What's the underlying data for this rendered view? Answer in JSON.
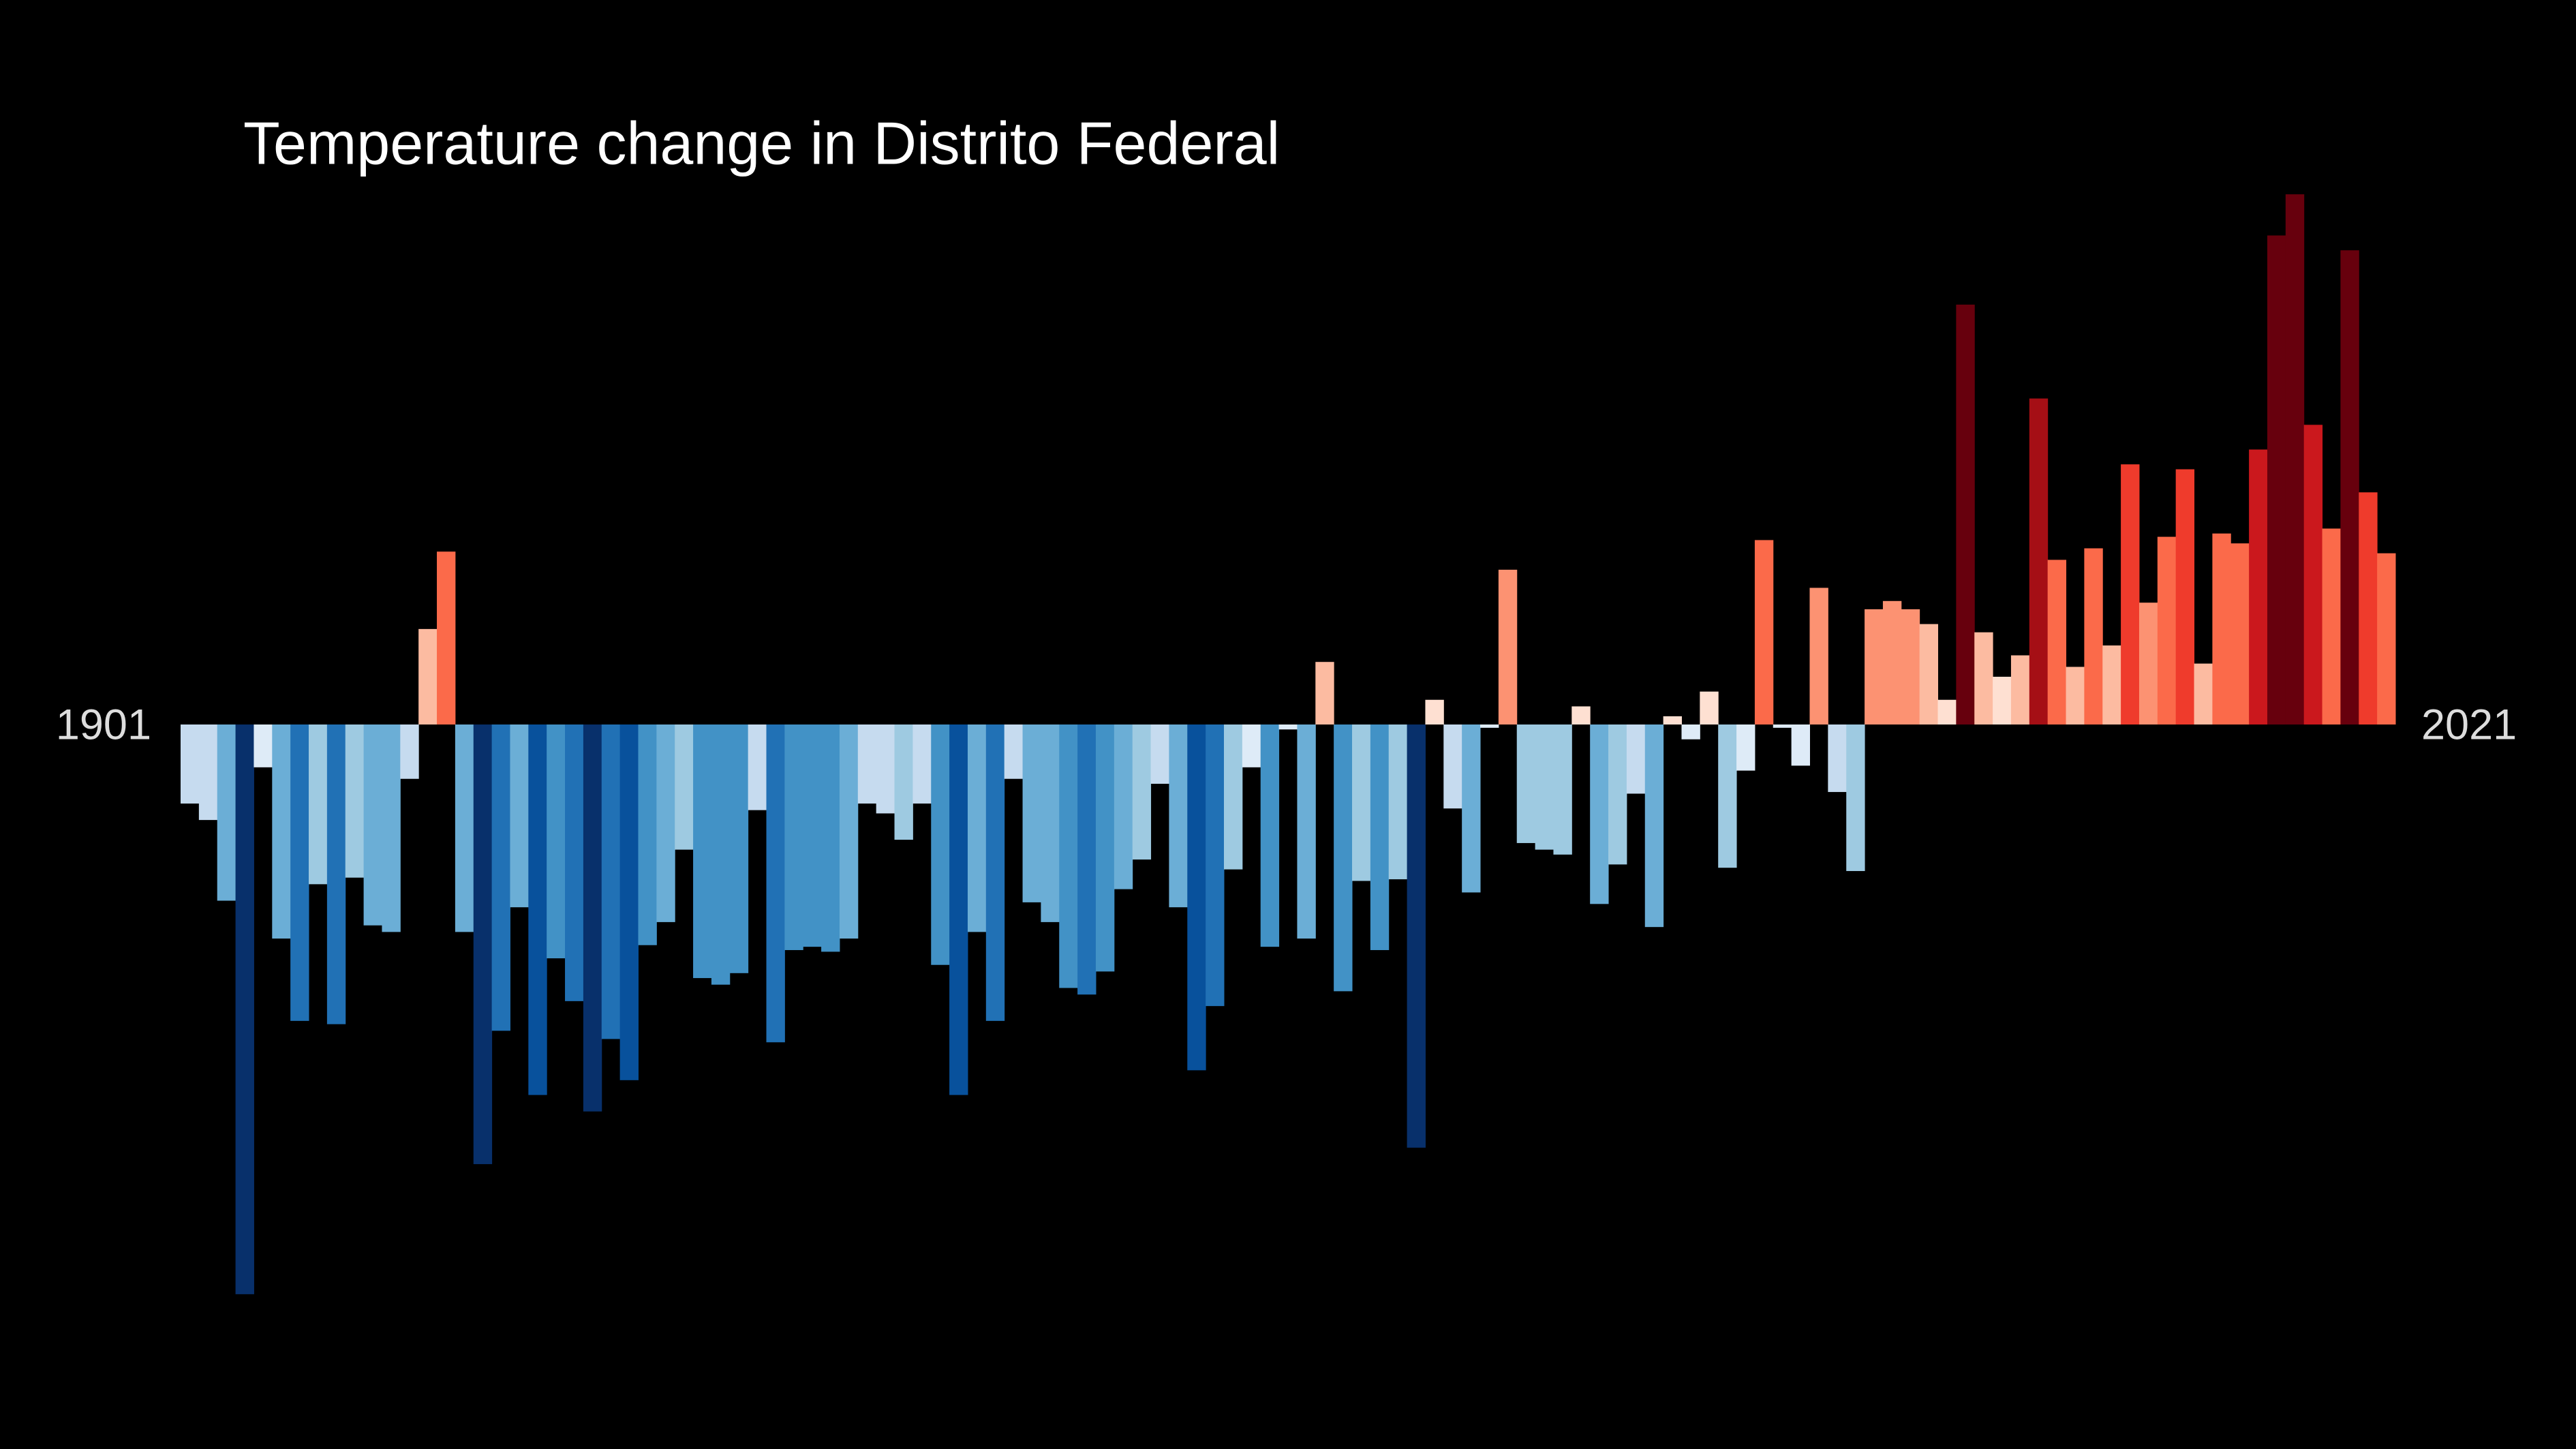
{
  "chart_data": {
    "type": "bar",
    "title": "Temperature change in Distrito Federal",
    "x": [
      1901,
      1902,
      1903,
      1904,
      1905,
      1906,
      1907,
      1908,
      1909,
      1910,
      1911,
      1912,
      1913,
      1914,
      1915,
      1916,
      1917,
      1918,
      1919,
      1920,
      1921,
      1922,
      1923,
      1924,
      1925,
      1926,
      1927,
      1928,
      1929,
      1930,
      1931,
      1932,
      1933,
      1934,
      1935,
      1936,
      1937,
      1938,
      1939,
      1940,
      1941,
      1942,
      1943,
      1944,
      1945,
      1946,
      1947,
      1948,
      1949,
      1950,
      1951,
      1952,
      1953,
      1954,
      1955,
      1956,
      1957,
      1958,
      1959,
      1960,
      1961,
      1962,
      1963,
      1964,
      1965,
      1966,
      1967,
      1968,
      1969,
      1970,
      1971,
      1972,
      1973,
      1974,
      1975,
      1976,
      1977,
      1978,
      1979,
      1980,
      1981,
      1982,
      1983,
      1984,
      1985,
      1986,
      1987,
      1988,
      1989,
      1990,
      1991,
      1992,
      1993,
      1994,
      1995,
      1996,
      1997,
      1998,
      1999,
      2000,
      2001,
      2002,
      2003,
      2004,
      2005,
      2006,
      2007,
      2008,
      2009,
      2010,
      2011,
      2012,
      2013,
      2014,
      2015,
      2016,
      2017,
      2018,
      2019,
      2020,
      2021
    ],
    "values": [
      -0.24,
      -0.29,
      -0.535,
      -1.73,
      -0.13,
      -0.65,
      -0.9,
      -0.485,
      -0.91,
      -0.465,
      -0.61,
      -0.63,
      -0.165,
      0.29,
      0.525,
      -0.63,
      -1.335,
      -0.93,
      -0.555,
      -1.125,
      -0.71,
      -0.84,
      -1.175,
      -0.955,
      -1.08,
      -0.67,
      -0.6,
      -0.38,
      -0.77,
      -0.79,
      -0.755,
      -0.26,
      -0.965,
      -0.685,
      -0.675,
      -0.69,
      -0.65,
      -0.24,
      -0.27,
      -0.35,
      -0.24,
      -0.73,
      -1.125,
      -0.63,
      -0.9,
      -0.165,
      -0.54,
      -0.6,
      -0.8,
      -0.82,
      -0.75,
      -0.5,
      -0.41,
      -0.18,
      -0.555,
      -1.05,
      -0.855,
      -0.44,
      -0.13,
      -0.675,
      -0.015,
      -0.65,
      0.19,
      -0.81,
      -0.475,
      -0.685,
      -0.47,
      -1.285,
      0.075,
      -0.255,
      -0.51,
      -0.01,
      0.47,
      -0.36,
      -0.38,
      -0.395,
      0.055,
      -0.545,
      -0.425,
      -0.21,
      -0.615,
      0.025,
      -0.045,
      0.1,
      -0.435,
      -0.14,
      0.56,
      -0.01,
      -0.125,
      0.415,
      -0.205,
      -0.445,
      0.35,
      0.375,
      0.35,
      0.305,
      0.075,
      1.275,
      0.28,
      0.145,
      0.21,
      0.99,
      0.5,
      0.175,
      0.535,
      0.24,
      0.79,
      0.37,
      0.57,
      0.775,
      0.185,
      0.58,
      0.55,
      0.835,
      1.485,
      1.61,
      0.91,
      0.595,
      1.44,
      0.705,
      0.52
    ],
    "xlim": [
      1900.5,
      2021.5
    ],
    "xticks": [
      1901,
      2021
    ],
    "ylim": [
      -2.2,
      2.2
    ],
    "color_range": [
      -1.3,
      1.3
    ],
    "colors": [
      "#08306b",
      "#08519c",
      "#2171b5",
      "#4292c6",
      "#6baed6",
      "#9ecae1",
      "#c6dbef",
      "#deebf7",
      "#fee0d2",
      "#fcbba1",
      "#fc9272",
      "#fb6a4a",
      "#ef3b2c",
      "#cb181d",
      "#a50f15",
      "#67000d"
    ]
  }
}
